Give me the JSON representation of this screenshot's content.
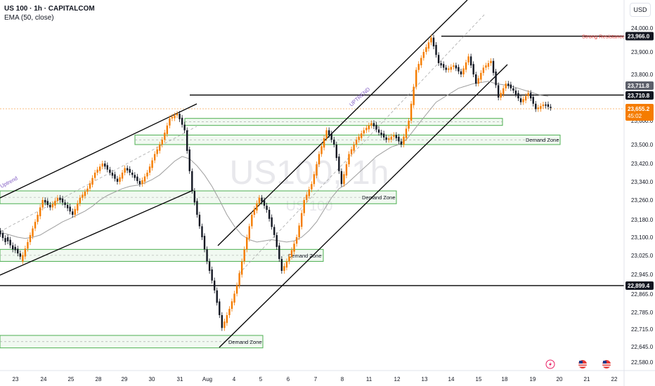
{
  "header": {
    "title": "US 100 · 1h · CAPITALCOM",
    "indicator": "EMA (50, close)",
    "currency": "USD"
  },
  "watermark": {
    "symbol": "US100, 1h",
    "sub": "US 100"
  },
  "colors": {
    "up": "#f57c00",
    "down": "#131722",
    "ema": "#9e9e9e",
    "zone_border": "#4caf50",
    "zone_fill": "rgba(200,230,201,0.25)",
    "price_tag": "#f57c00",
    "line": "#000000",
    "resistance_text": "#e53935",
    "channel_label": "#7e57c2"
  },
  "annotations": {
    "strong_resistance": "Strong Resistance",
    "demand_zone": "Demand Zone",
    "uptrend": "Uptrend",
    "uptrend_upper": "UPTREND"
  },
  "price_labels": {
    "resistance": "23,966.0",
    "level_high": "23,711.8",
    "level_mid": "23,710.8",
    "current": "23,655.2",
    "countdown": "45:02",
    "support": "22,899.4"
  },
  "chart_data": {
    "type": "candlestick",
    "symbol": "US 100",
    "timeframe": "1h",
    "y_ticks": [
      "24,000.0",
      "23,900.0",
      "23,800.0",
      "23,600.0",
      "23,500.0",
      "23,420.0",
      "23,340.0",
      "23,260.0",
      "23,180.0",
      "23,100.0",
      "23,025.0",
      "22,945.0",
      "22,865.0",
      "22,785.0",
      "22,715.0",
      "22,645.0",
      "22,580.0"
    ],
    "x_ticks": [
      "23",
      "24",
      "25",
      "28",
      "29",
      "30",
      "31",
      "Aug",
      "4",
      "5",
      "6",
      "7",
      "8",
      "11",
      "12",
      "13",
      "14",
      "15",
      "18",
      "19",
      "20",
      "21",
      "22"
    ],
    "horizontal_levels": [
      {
        "name": "Strong Resistance",
        "value": 23966.0
      },
      {
        "name": "",
        "value": 23710.8
      },
      {
        "name": "",
        "value": 22899.4
      }
    ],
    "demand_zones": [
      {
        "from": 23590,
        "to": 23610,
        "label": ""
      },
      {
        "from": 23500,
        "to": 23540,
        "label": "Demand Zone"
      },
      {
        "from": 23245,
        "to": 23300,
        "label": "Demand Zone"
      },
      {
        "from": 23000,
        "to": 23050,
        "label": "Demand Zone"
      },
      {
        "from": 22640,
        "to": 22690,
        "label": "Demand Zone"
      }
    ],
    "ohlc_path": [
      [
        23130,
        23080
      ],
      [
        23100,
        23050
      ],
      [
        23060,
        23020
      ],
      [
        23000,
        23080
      ],
      [
        23080,
        23170
      ],
      [
        23170,
        23260
      ],
      [
        23260,
        23230
      ],
      [
        23230,
        23270
      ],
      [
        23270,
        23240
      ],
      [
        23240,
        23200
      ],
      [
        23200,
        23270
      ],
      [
        23270,
        23310
      ],
      [
        23310,
        23380
      ],
      [
        23380,
        23420
      ],
      [
        23420,
        23380
      ],
      [
        23380,
        23340
      ],
      [
        23340,
        23400
      ],
      [
        23400,
        23370
      ],
      [
        23370,
        23330
      ],
      [
        23330,
        23380
      ],
      [
        23380,
        23460
      ],
      [
        23460,
        23520
      ],
      [
        23520,
        23610
      ],
      [
        23610,
        23630
      ],
      [
        23630,
        23560
      ],
      [
        23560,
        23300
      ],
      [
        23300,
        23150
      ],
      [
        23150,
        23000
      ],
      [
        23000,
        22880
      ],
      [
        22880,
        22720
      ],
      [
        22720,
        22800
      ],
      [
        22800,
        22900
      ],
      [
        22900,
        23050
      ],
      [
        23050,
        23200
      ],
      [
        23200,
        23270
      ],
      [
        23270,
        23220
      ],
      [
        23220,
        23110
      ],
      [
        23110,
        22960
      ],
      [
        22960,
        23020
      ],
      [
        23020,
        23100
      ],
      [
        23100,
        23260
      ],
      [
        23260,
        23330
      ],
      [
        23330,
        23460
      ],
      [
        23460,
        23560
      ],
      [
        23560,
        23500
      ],
      [
        23500,
        23330
      ],
      [
        23330,
        23460
      ],
      [
        23460,
        23520
      ],
      [
        23520,
        23560
      ],
      [
        23560,
        23590
      ],
      [
        23590,
        23550
      ],
      [
        23550,
        23520
      ],
      [
        23520,
        23540
      ],
      [
        23540,
        23500
      ],
      [
        23500,
        23600
      ],
      [
        23600,
        23820
      ],
      [
        23820,
        23900
      ],
      [
        23900,
        23960
      ],
      [
        23960,
        23850
      ],
      [
        23850,
        23820
      ],
      [
        23820,
        23840
      ],
      [
        23840,
        23800
      ],
      [
        23800,
        23880
      ],
      [
        23880,
        23760
      ],
      [
        23760,
        23830
      ],
      [
        23830,
        23860
      ],
      [
        23860,
        23700
      ],
      [
        23700,
        23760
      ],
      [
        23760,
        23730
      ],
      [
        23730,
        23680
      ],
      [
        23680,
        23720
      ],
      [
        23720,
        23650
      ],
      [
        23650,
        23670
      ],
      [
        23670,
        23655
      ]
    ],
    "ema_path": [
      23120,
      23110,
      23100,
      23095,
      23100,
      23110,
      23130,
      23150,
      23170,
      23185,
      23200,
      23215,
      23235,
      23260,
      23280,
      23295,
      23310,
      23320,
      23325,
      23335,
      23350,
      23370,
      23400,
      23430,
      23450,
      23440,
      23410,
      23370,
      23320,
      23260,
      23200,
      23150,
      23110,
      23090,
      23080,
      23085,
      23090,
      23085,
      23080,
      23085,
      23100,
      23130,
      23170,
      23220,
      23270,
      23310,
      23330,
      23360,
      23390,
      23420,
      23450,
      23470,
      23490,
      23500,
      23520,
      23560,
      23600,
      23640,
      23680,
      23700,
      23720,
      23740,
      23750,
      23760,
      23765,
      23770,
      23760,
      23755,
      23750,
      23740,
      23730,
      23720,
      23710,
      23705
    ]
  }
}
